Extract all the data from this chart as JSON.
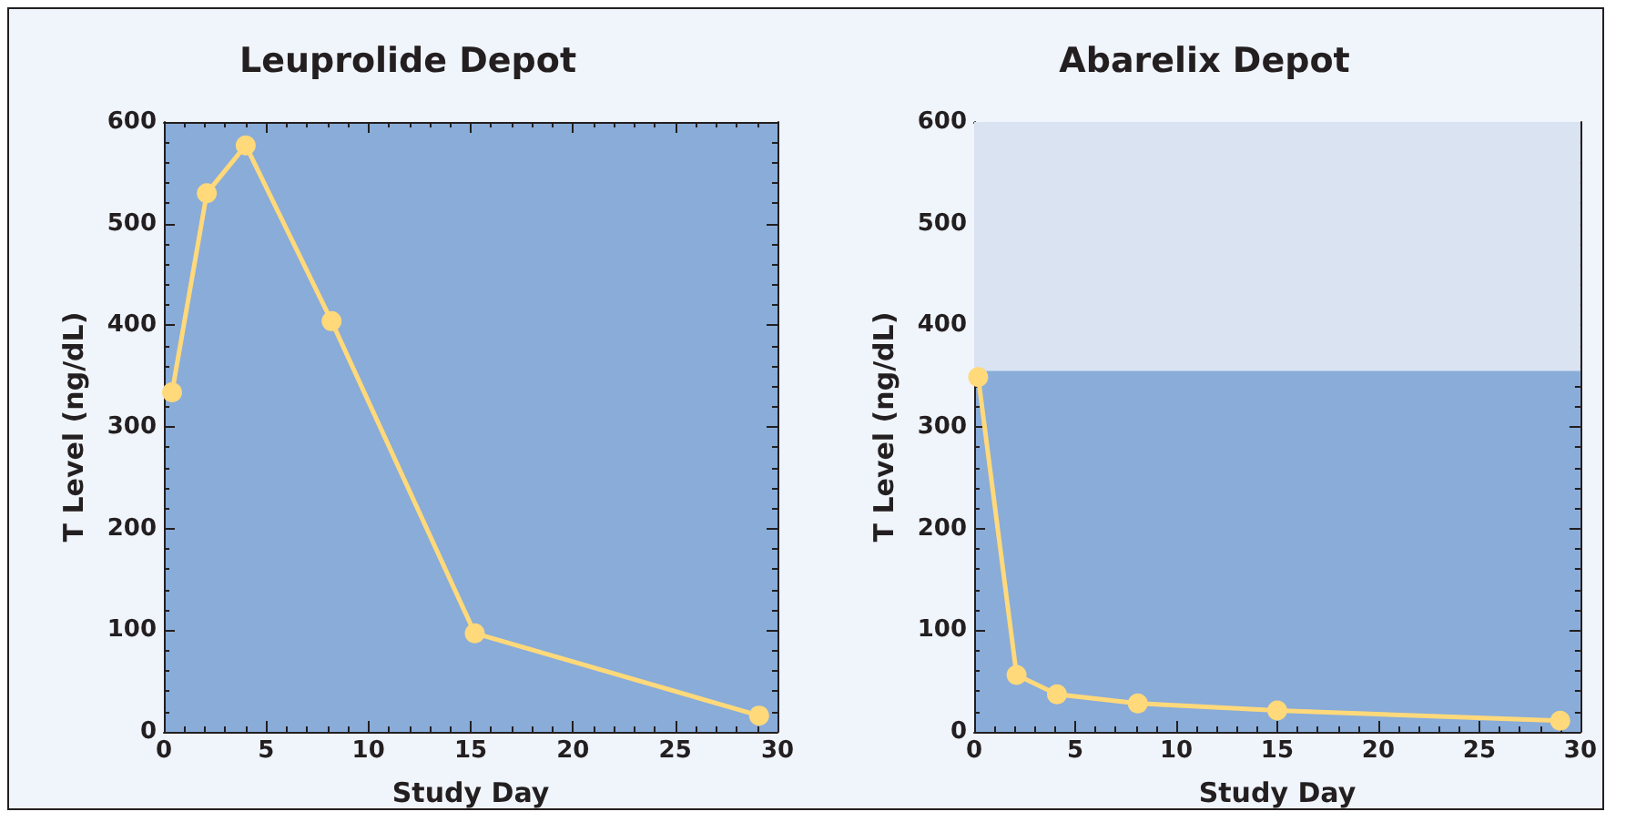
{
  "chart_data": [
    {
      "type": "line",
      "title": "Leuprolide Depot",
      "xlabel": "Study Day",
      "ylabel": "T Level (ng/dL)",
      "x": [
        0.4,
        2.1,
        4.0,
        8.2,
        15.2,
        29.1
      ],
      "series": [
        {
          "color": "#ffd97a",
          "values": [
            334,
            530,
            577,
            404,
            97,
            16
          ]
        }
      ],
      "xlim": [
        0,
        30
      ],
      "xticks": [
        0,
        5,
        10,
        15,
        20,
        25,
        30
      ],
      "ylim": [
        0,
        600
      ],
      "yticks": [
        0,
        100,
        200,
        300,
        400,
        500,
        600
      ],
      "grid": false,
      "marker": "circle",
      "line_style": "solid"
    },
    {
      "type": "line",
      "title": "Abarelix Depot",
      "xlabel": "Study Day",
      "ylabel": "T Level (ng/dL)",
      "x": [
        0.2,
        2.1,
        4.1,
        8.1,
        15.0,
        29.0
      ],
      "series": [
        {
          "color": "#ffd97a",
          "values": [
            349,
            56,
            37,
            28,
            21,
            11
          ]
        }
      ],
      "xlim": [
        0,
        30
      ],
      "xticks": [
        0,
        5,
        10,
        15,
        20,
        25,
        30
      ],
      "ylim": [
        0,
        600
      ],
      "yticks": [
        0,
        100,
        200,
        300,
        400,
        500,
        600
      ],
      "grid": false,
      "marker": "circle",
      "line_style": "solid",
      "bands": [
        {
          "axis": "y",
          "from": 355,
          "to": 600,
          "color": "#dae3f2"
        }
      ]
    }
  ]
}
